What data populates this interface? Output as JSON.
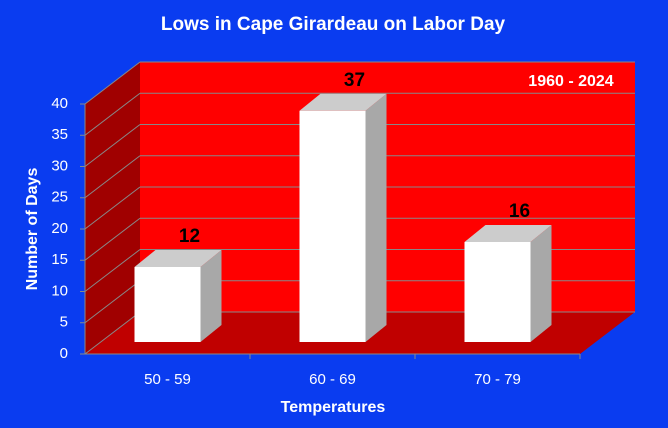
{
  "chart_data": {
    "type": "bar3d",
    "title": "Lows in Cape Girardeau on Labor Day",
    "annotation": "1960 - 2024",
    "x_label": "Temperatures",
    "y_label": "Number of Days",
    "categories": [
      "50 - 59",
      "60 - 69",
      "70 - 79"
    ],
    "values": [
      12,
      37,
      16
    ],
    "color": "#ffffff",
    "ylim": [
      0,
      40
    ],
    "yticks": [
      0,
      5,
      10,
      15,
      20,
      25,
      30,
      35,
      40
    ],
    "grid": true
  }
}
